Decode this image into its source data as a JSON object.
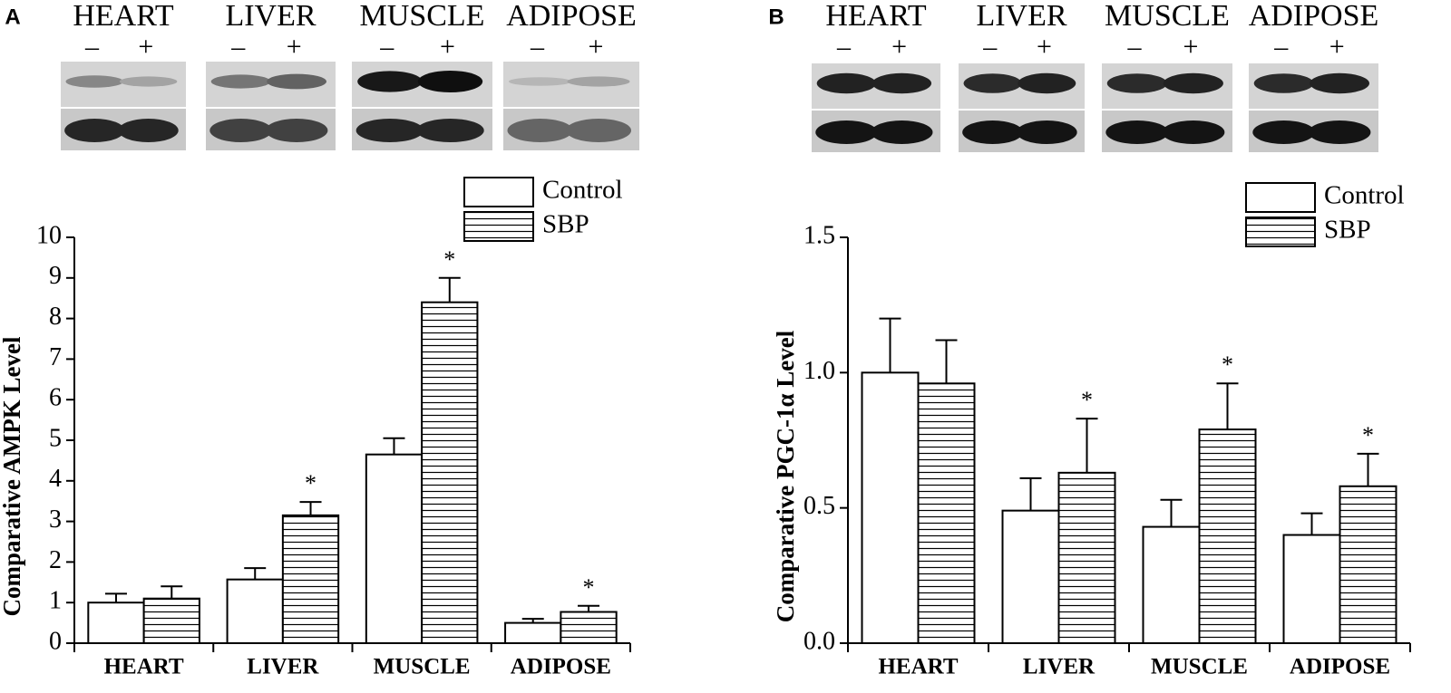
{
  "chart_data": [
    {
      "type": "bar",
      "panel": "A",
      "ylabel": "Comparative AMPK Level",
      "blot": {
        "tissues": [
          "HEART",
          "LIVER",
          "MUSCLE",
          "ADIPOSE"
        ],
        "lanes": [
          "–",
          "+"
        ]
      },
      "categories": [
        "HEART",
        "LIVER",
        "MUSCLE",
        "ADIPOSE"
      ],
      "series": [
        {
          "name": "Control",
          "color": "#ffffff",
          "hatch": "none",
          "values": [
            1.0,
            1.57,
            4.65,
            0.5
          ],
          "errors": [
            0.22,
            0.28,
            0.4,
            0.1
          ]
        },
        {
          "name": "SBP",
          "color": "#ffffff",
          "hatch": "horizontal",
          "values": [
            1.1,
            3.15,
            8.4,
            0.77
          ],
          "errors": [
            0.3,
            0.33,
            0.6,
            0.15
          ]
        }
      ],
      "annotations": [
        {
          "text": "*",
          "category": 1,
          "series": 1
        },
        {
          "text": "*",
          "category": 2,
          "series": 1
        },
        {
          "text": "*",
          "category": 3,
          "series": 1
        }
      ],
      "ylim": [
        0,
        10
      ],
      "yticks": [
        0,
        1,
        2,
        3,
        4,
        5,
        6,
        7,
        8,
        9,
        10
      ],
      "legend": "top-right"
    },
    {
      "type": "bar",
      "panel": "B",
      "ylabel": "Comparative PGC-1α Level",
      "blot": {
        "tissues": [
          "HEART",
          "LIVER",
          "MUSCLE",
          "ADIPOSE"
        ],
        "lanes": [
          "–",
          "+"
        ]
      },
      "categories": [
        "HEART",
        "LIVER",
        "MUSCLE",
        "ADIPOSE"
      ],
      "series": [
        {
          "name": "Control",
          "color": "#ffffff",
          "hatch": "none",
          "values": [
            1.0,
            0.49,
            0.43,
            0.4
          ],
          "errors": [
            0.2,
            0.12,
            0.1,
            0.08
          ]
        },
        {
          "name": "SBP",
          "color": "#ffffff",
          "hatch": "horizontal",
          "values": [
            0.96,
            0.63,
            0.79,
            0.58
          ],
          "errors": [
            0.16,
            0.2,
            0.17,
            0.12
          ]
        }
      ],
      "annotations": [
        {
          "text": "*",
          "category": 1,
          "series": 1
        },
        {
          "text": "*",
          "category": 2,
          "series": 1
        },
        {
          "text": "*",
          "category": 3,
          "series": 1
        }
      ],
      "ylim": [
        0,
        1.5
      ],
      "yticks": [
        {
          "value": 0,
          "label": "0.0"
        },
        0.5,
        {
          "value": 1,
          "label": "1.0"
        },
        1.5
      ],
      "legend": "top-right"
    }
  ]
}
